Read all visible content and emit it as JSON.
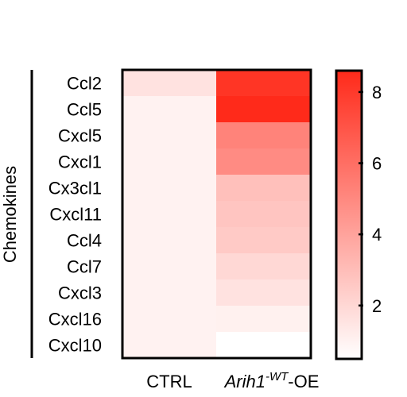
{
  "chart_data": {
    "type": "heatmap",
    "group_label": "Chemokines",
    "rows": [
      "Ccl2",
      "Ccl5",
      "Cxcl5",
      "Cxcl1",
      "Cx3cl1",
      "Cxcl11",
      "Ccl4",
      "Ccl7",
      "Cxcl3",
      "Cxcl16",
      "Cxcl10"
    ],
    "columns": [
      {
        "label": "CTRL",
        "label_main": "CTRL",
        "label_sup": "",
        "label_tail": ""
      },
      {
        "label": "Arih1-WT-OE",
        "label_main": "Arih1",
        "label_sup": "-WT",
        "label_tail": "-OE"
      }
    ],
    "values": [
      [
        1.6,
        8.2
      ],
      [
        1.0,
        8.6
      ],
      [
        1.0,
        5.2
      ],
      [
        1.0,
        4.9
      ],
      [
        1.0,
        2.9
      ],
      [
        1.0,
        2.7
      ],
      [
        1.0,
        2.5
      ],
      [
        1.0,
        2.0
      ],
      [
        1.0,
        1.6
      ],
      [
        1.0,
        1.05
      ],
      [
        1.0,
        0.5
      ]
    ],
    "colorbar": {
      "min": 0.5,
      "max": 8.6,
      "ticks": [
        2,
        4,
        6,
        8
      ],
      "tick_labels": [
        "2",
        "4",
        "6",
        "8"
      ],
      "low_color": "#ffffff",
      "high_color": "#ff2a1a"
    }
  }
}
